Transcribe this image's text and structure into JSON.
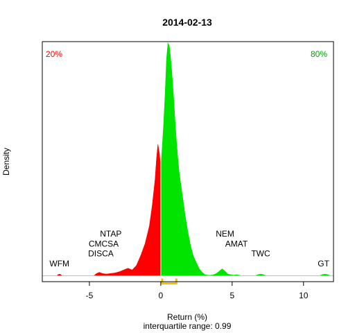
{
  "chart_data": {
    "type": "area",
    "title": "2014-02-13",
    "xlabel": "Return (%)",
    "ylabel": "Density",
    "subtitle": "interquartile range: 0.99",
    "xlim": [
      -8.3,
      12.1
    ],
    "ylim": [
      -0.01,
      0.4
    ],
    "xticks": [
      -5,
      0,
      5,
      10
    ],
    "grid": false,
    "split_at": 0,
    "pct_negative_label": "20%",
    "pct_positive_label": "80%",
    "colors": {
      "negative": "#ff0000",
      "positive": "#00e400",
      "iqr": "#f2c200",
      "baseline": "#bebebe",
      "axis": "#000000"
    },
    "iqr_range": [
      0.1,
      1.09
    ],
    "density": {
      "x": [
        -7.3,
        -7.2,
        -7.1,
        -7.0,
        -6.9,
        -4.7,
        -4.5,
        -4.3,
        -4.1,
        -3.8,
        -3.5,
        -3.2,
        -2.9,
        -2.6,
        -2.3,
        -2.0,
        -1.7,
        -1.4,
        -1.1,
        -0.8,
        -0.6,
        -0.4,
        -0.3,
        -0.2,
        -0.1,
        0.0,
        0.1,
        0.2,
        0.3,
        0.4,
        0.5,
        0.6,
        0.7,
        0.8,
        0.9,
        1.0,
        1.1,
        1.2,
        1.3,
        1.5,
        1.7,
        1.9,
        2.1,
        2.3,
        2.5,
        2.7,
        2.9,
        3.1,
        3.3,
        3.5,
        3.7,
        3.9,
        4.1,
        4.3,
        4.5,
        4.7,
        4.9,
        5.1,
        5.3,
        5.5,
        5.7,
        6.6,
        6.8,
        7.0,
        7.2,
        7.4,
        11.1,
        11.3,
        11.5,
        11.7,
        11.9
      ],
      "y": [
        0.0,
        0.002,
        0.003,
        0.002,
        0.0,
        0.0,
        0.004,
        0.006,
        0.004,
        0.003,
        0.004,
        0.005,
        0.007,
        0.01,
        0.013,
        0.01,
        0.018,
        0.035,
        0.055,
        0.085,
        0.12,
        0.165,
        0.2,
        0.225,
        0.21,
        0.185,
        0.22,
        0.26,
        0.31,
        0.37,
        0.398,
        0.393,
        0.37,
        0.34,
        0.305,
        0.265,
        0.23,
        0.2,
        0.175,
        0.14,
        0.105,
        0.075,
        0.05,
        0.033,
        0.022,
        0.012,
        0.006,
        0.002,
        0.001,
        0.001,
        0.002,
        0.004,
        0.008,
        0.012,
        0.008,
        0.003,
        0.002,
        0.001,
        0.002,
        0.001,
        0.0,
        0.0,
        0.002,
        0.003,
        0.002,
        0.0,
        0.0,
        0.002,
        0.003,
        0.002,
        0.0
      ]
    },
    "annotations": [
      {
        "text": "WFM",
        "x": -7.1,
        "y": 0.016
      },
      {
        "text": "DISCA",
        "x": -4.2,
        "y": 0.033
      },
      {
        "text": "CMCSA",
        "x": -4.0,
        "y": 0.05
      },
      {
        "text": "NTAP",
        "x": -3.5,
        "y": 0.067
      },
      {
        "text": "NEM",
        "x": 4.5,
        "y": 0.067
      },
      {
        "text": "AMAT",
        "x": 5.3,
        "y": 0.05
      },
      {
        "text": "TWC",
        "x": 7.0,
        "y": 0.033
      },
      {
        "text": "GT",
        "x": 11.4,
        "y": 0.016
      }
    ]
  }
}
